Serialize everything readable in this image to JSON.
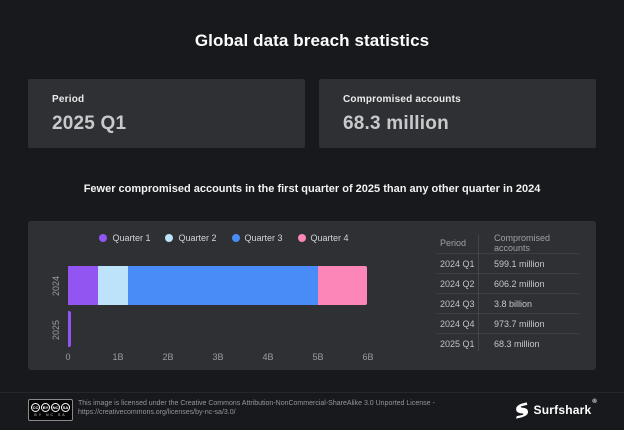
{
  "page": {
    "title": "Global data breach statistics",
    "subtitle": "Fewer compromised accounts in the first quarter of 2025 than any other quarter in 2024"
  },
  "cards": [
    {
      "label": "Period",
      "value": "2025 Q1"
    },
    {
      "label": "Compromised accounts",
      "value": "68.3 million"
    }
  ],
  "chart_data": {
    "type": "bar",
    "orientation": "horizontal",
    "stacked": true,
    "categories": [
      "2024",
      "2025"
    ],
    "series": [
      {
        "name": "Quarter 1",
        "color": "#9355F2",
        "values_billions": [
          0.5991,
          0.0683
        ]
      },
      {
        "name": "Quarter 2",
        "color": "#BCE3F9",
        "values_billions": [
          0.6062,
          0
        ]
      },
      {
        "name": "Quarter 3",
        "color": "#4A8CF7",
        "values_billions": [
          3.8,
          0
        ]
      },
      {
        "name": "Quarter 4",
        "color": "#FC86B8",
        "values_billions": [
          0.9737,
          0
        ]
      }
    ],
    "x_ticks": [
      {
        "label": "0",
        "value_billions": 0
      },
      {
        "label": "1B",
        "value_billions": 1
      },
      {
        "label": "2B",
        "value_billions": 2
      },
      {
        "label": "3B",
        "value_billions": 3
      },
      {
        "label": "4B",
        "value_billions": 4
      },
      {
        "label": "5B",
        "value_billions": 5
      },
      {
        "label": "6B",
        "value_billions": 6
      }
    ],
    "xlim_billions": [
      0,
      6.24
    ],
    "legend_position": "top",
    "grid": false
  },
  "table": {
    "headers": [
      "Period",
      "Compromised accounts"
    ],
    "rows": [
      {
        "period": "2024 Q1",
        "value": "599.1 million"
      },
      {
        "period": "2024 Q2",
        "value": "606.2 million"
      },
      {
        "period": "2024 Q3",
        "value": "3.8 billion"
      },
      {
        "period": "2024 Q4",
        "value": "973.7 million"
      },
      {
        "period": "2025 Q1",
        "value": "68.3 million"
      }
    ]
  },
  "footer": {
    "license_line1": "This image is licensed under the Creative Commons Attribution-NonCommercial-ShareAlike 3.0 Unported License -",
    "license_line2": "https://creativecommons.org/licenses/by-nc-sa/3.0/",
    "cc_icons": [
      "CC",
      "BY",
      "NC",
      "SA"
    ],
    "cc_sub_letters": "BY NC SA",
    "brand": "Surfshark",
    "brand_mark": "®"
  },
  "colors": {
    "background": "#17191C",
    "panel": "#2E3034",
    "quarter1": "#9355F2",
    "quarter2": "#BCE3F9",
    "quarter3": "#4A8CF7",
    "quarter4": "#FC86B8"
  }
}
